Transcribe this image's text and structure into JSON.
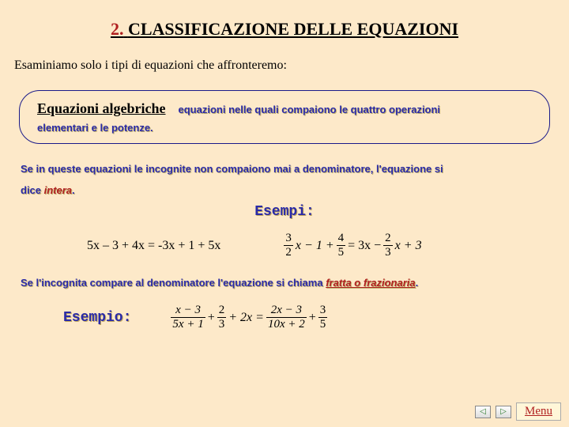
{
  "title_num": "2.",
  "title_text": "CLASSIFICAZIONE DELLE EQUAZIONI",
  "intro": "Esaminiamo solo i tipi di equazioni che affronteremo:",
  "def_heading": "Equazioni  algebriche",
  "def_text_1": "equazioni nelle quali compaiono le quattro operazioni",
  "def_text_2": "elementari e le potenze.",
  "para1_a": "Se in queste equazioni le incognite non compaiono mai a denominatore, l'equazione si",
  "para1_b": "dice ",
  "para1_intera": "intera",
  "para1_dot": ".",
  "esempi_label": "Esempi:",
  "eq1_text": "5x – 3 + 4x  =  -3x + 1 + 5x",
  "frac1": {
    "n": "3",
    "d": "2"
  },
  "eq2_mid1": "x − 1 +",
  "frac2": {
    "n": "4",
    "d": "5"
  },
  "eq2_eq": "= 3x −",
  "frac3": {
    "n": "2",
    "d": "3"
  },
  "eq2_end": "x + 3",
  "para2_a": "Se l'incognita compare al denominatore l'equazione si chiama ",
  "para2_fratta": "fratta o frazionaria",
  "para2_dot": ".",
  "esempio2_label": "Esempio:",
  "ex2_f1": {
    "n": "x − 3",
    "d": "5x + 1"
  },
  "ex2_plus1": " +",
  "ex2_f2": {
    "n": "2",
    "d": "3"
  },
  "ex2_mid": "+ 2x =",
  "ex2_f3": {
    "n": "2x − 3",
    "d": "10x + 2"
  },
  "ex2_plus2": "+",
  "ex2_f4": {
    "n": "3",
    "d": "5"
  },
  "menu_label": "Menu",
  "nav_left": "◁",
  "nav_right": "▷"
}
